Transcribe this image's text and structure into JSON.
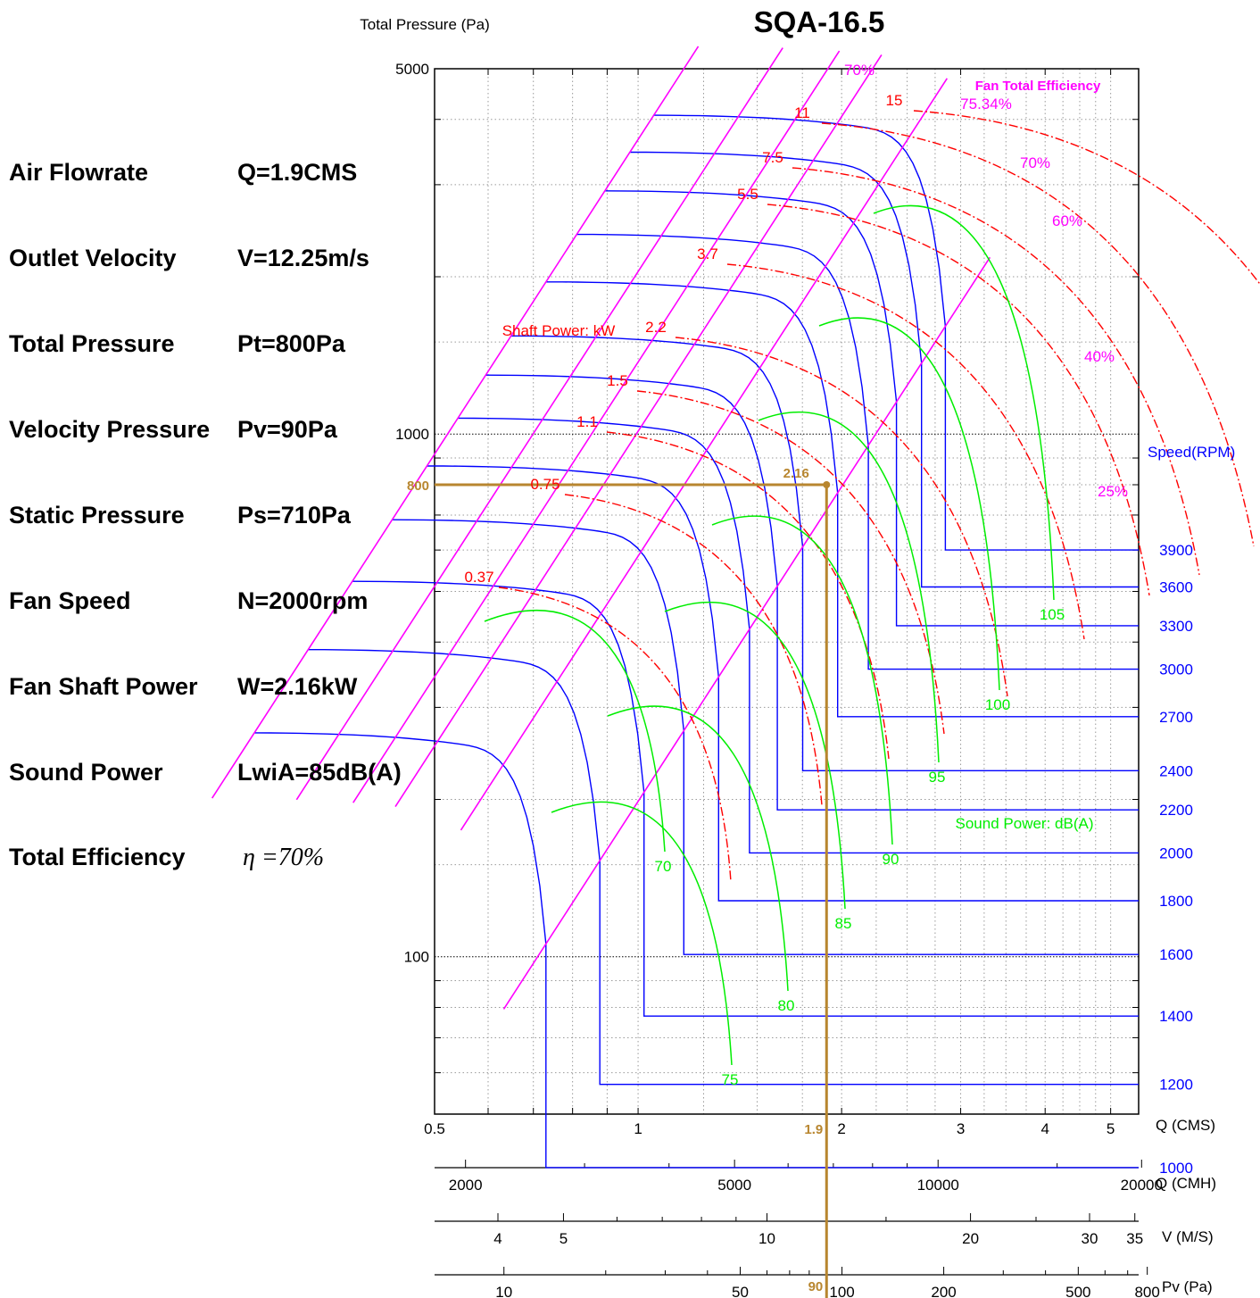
{
  "chart_data": {
    "type": "line",
    "title": "SQA-16.5",
    "ylabel": "Total Pressure (Pa)",
    "y_scale": "log",
    "x_scale": "log",
    "ylim": [
      50,
      5000
    ],
    "xlim": [
      0.5,
      5.5
    ],
    "y_ticks": [
      "5000",
      "1000",
      "100"
    ],
    "x_ticks": [
      "0.5",
      "1",
      "2",
      "3",
      "4",
      "5"
    ],
    "x_unit_label": "Q (CMS)",
    "secondary_axes": {
      "cmh": {
        "label": "Q (CMH)",
        "ticks": [
          "2000",
          "5000",
          "10000",
          "20000"
        ]
      },
      "velocity": {
        "label": "V (M/S)",
        "ticks": [
          "4",
          "5",
          "10",
          "20",
          "30",
          "35"
        ]
      },
      "pv": {
        "label": "Pv (Pa)",
        "ticks": [
          "10",
          "50",
          "100",
          "200",
          "500",
          "800"
        ]
      }
    },
    "speed_label": "Speed(RPM)",
    "speeds": [
      {
        "rpm": "3900",
        "pressure": 600
      },
      {
        "rpm": "3600",
        "pressure": 510
      },
      {
        "rpm": "3300",
        "pressure": 430
      },
      {
        "rpm": "3000",
        "pressure": 355
      },
      {
        "rpm": "2700",
        "pressure": 288
      },
      {
        "rpm": "2400",
        "pressure": 227
      },
      {
        "rpm": "2200",
        "pressure": 191
      },
      {
        "rpm": "2000",
        "pressure": 158
      },
      {
        "rpm": "1800",
        "pressure": 128
      },
      {
        "rpm": "1600",
        "pressure": 101
      },
      {
        "rpm": "1400",
        "pressure": 77
      },
      {
        "rpm": "1200",
        "pressure": 57
      },
      {
        "rpm": "1000",
        "pressure": 39.5
      }
    ],
    "efficiency_title": "Fan Total Efficiency",
    "efficiency_labels": [
      "70%",
      "75.34%",
      "70%",
      "60%",
      "40%",
      "25%"
    ],
    "shaft_power_title": "Shaft Power: kW",
    "shaft_power_labels": [
      "0.37",
      "0.75",
      "1.1",
      "1.5",
      "2.2",
      "3.7",
      "5.5",
      "7.5",
      "11",
      "15",
      "2.16"
    ],
    "sound_title": "Sound Power: dB(A)",
    "sound_labels": [
      "70",
      "75",
      "80",
      "85",
      "90",
      "95",
      "100",
      "105"
    ],
    "operating_point": {
      "q": 1.9,
      "pt": 800,
      "power": "2.16",
      "q_label": "1.9",
      "pt_label": "800",
      "pv_label": "90"
    },
    "colors": {
      "curves": "#0000ff",
      "efficiency": "#ff00ff",
      "power": "#ff0000",
      "sound": "#00ee00",
      "operating": "#b8862f",
      "grid": "#9a9a9a"
    }
  },
  "specs": [
    {
      "label": "Air Flowrate",
      "value": "Q=1.9CMS"
    },
    {
      "label": "Outlet Velocity",
      "value": "V=12.25m/s"
    },
    {
      "label": "Total Pressure",
      "value": "Pt=800Pa"
    },
    {
      "label": "Velocity Pressure",
      "value": "Pv=90Pa"
    },
    {
      "label": "Static Pressure",
      "value": "Ps=710Pa"
    },
    {
      "label": "Fan Speed",
      "value": "N=2000rpm"
    },
    {
      "label": "Fan Shaft Power",
      "value": "W=2.16kW"
    },
    {
      "label": "Sound Power",
      "value": "LwiA=85dB(A)"
    },
    {
      "label": "Total Efficiency",
      "value": "η =70%"
    }
  ]
}
